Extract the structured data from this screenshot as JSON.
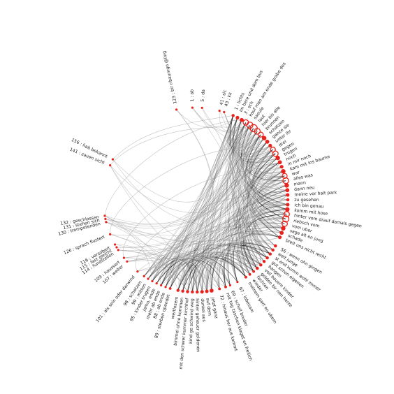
{
  "diagram": {
    "type": "radial-edge-bundle",
    "colors": {
      "background": "#ffffff",
      "edge": "#111111",
      "edge_faint": "#9a9a9a",
      "node": "#e8221c",
      "label": "#222222"
    },
    "nodes": [
      {
        "id": "n0",
        "label": "1 : ab",
        "angle": -2,
        "size": 1.0
      },
      {
        "id": "n1",
        "label": "5 : da",
        "angle": 4,
        "size": 1.0
      },
      {
        "id": "n2",
        "label": "123 : bir ribaumgo @ling",
        "angle": -12,
        "size": 1.0
      },
      {
        "id": "n3",
        "label": "41 : sic",
        "angle": 15,
        "size": 1.0
      },
      {
        "id": "n4",
        "label": "43 : kk",
        "angle": 18,
        "size": 1.0
      },
      {
        "id": "n5",
        "label": "1 : lichts",
        "angle": 24,
        "size": 1.4
      },
      {
        "id": "n6",
        "label": "im bere und dem bus",
        "angle": 27,
        "size": 1.6
      },
      {
        "id": "n7",
        "label": "3 : sch",
        "angle": 30,
        "size": 1.8
      },
      {
        "id": "n8",
        "label": "kauf man am ende grabe des",
        "angle": 33,
        "size": 2.4
      },
      {
        "id": "n9",
        "label": "saeule",
        "angle": 36,
        "size": 2.8
      },
      {
        "id": "n10",
        "label": "laut",
        "angle": 39,
        "size": 3.2
      },
      {
        "id": "n11",
        "label": "hier bis alle",
        "angle": 42,
        "size": 2.6
      },
      {
        "id": "n12",
        "label": "brunnen",
        "angle": 45,
        "size": 2.2
      },
      {
        "id": "n13",
        "label": "schatzen",
        "angle": 48,
        "size": 2.0
      },
      {
        "id": "n14",
        "label": "ganze sie",
        "angle": 51,
        "size": 1.8
      },
      {
        "id": "n15",
        "label": "unter ihr",
        "angle": 54,
        "size": 1.6
      },
      {
        "id": "n16",
        "label": "drei",
        "angle": 57,
        "size": 2.2
      },
      {
        "id": "n17",
        "label": "gegen",
        "angle": 60,
        "size": 2.4
      },
      {
        "id": "n18",
        "label": "trugen",
        "angle": 63,
        "size": 2.0
      },
      {
        "id": "n19",
        "label": "noch",
        "angle": 66,
        "size": 1.8
      },
      {
        "id": "n20",
        "label": "in mir noch",
        "angle": 69,
        "size": 1.6
      },
      {
        "id": "n21",
        "label": "kam mit ins baume",
        "angle": 72,
        "size": 2.0
      },
      {
        "id": "n22",
        "label": "war",
        "angle": 75,
        "size": 2.2
      },
      {
        "id": "n23",
        "label": "alles was",
        "angle": 78,
        "size": 2.6
      },
      {
        "id": "n24",
        "label": "mann",
        "angle": 81,
        "size": 2.0
      },
      {
        "id": "n25",
        "label": "dann neu",
        "angle": 84,
        "size": 1.8
      },
      {
        "id": "n26",
        "label": "meine vor halt park",
        "angle": 87,
        "size": 1.6
      },
      {
        "id": "n27",
        "label": "zu gesehen",
        "angle": 90,
        "size": 1.4
      },
      {
        "id": "n28",
        "label": "ich bin genau",
        "angle": 93,
        "size": 1.6
      },
      {
        "id": "n29",
        "label": "komm mit hose",
        "angle": 96,
        "size": 2.0
      },
      {
        "id": "n30",
        "label": "hinter vom drauf damals gegen",
        "angle": 99,
        "size": 2.4
      },
      {
        "id": "n31",
        "label": "riebsch vom",
        "angle": 102,
        "size": 2.8
      },
      {
        "id": "n32",
        "label": "vom uber",
        "angle": 105,
        "size": 2.4
      },
      {
        "id": "n33",
        "label": "sage alt en jung",
        "angle": 108,
        "size": 2.0
      },
      {
        "id": "n34",
        "label": "schade",
        "angle": 111,
        "size": 1.8
      },
      {
        "id": "n35",
        "label": "breit uns nicht recht",
        "angle": 114,
        "size": 1.6
      },
      {
        "id": "n36",
        "label": "56 : wenn ohn gingen",
        "angle": 120,
        "size": 1.4
      },
      {
        "id": "n37",
        "label": "weit junge",
        "angle": 123,
        "size": 1.4
      },
      {
        "id": "n38",
        "label": "st and kumm wohl immer",
        "angle": 126,
        "size": 1.4
      },
      {
        "id": "n39",
        "label": "gut schon eigenen",
        "angle": 129,
        "size": 1.4
      },
      {
        "id": "n40",
        "label": "bangen",
        "angle": 132,
        "size": 1.4
      },
      {
        "id": "n41",
        "label": "voll bauern kinder",
        "angle": 135,
        "size": 1.4
      },
      {
        "id": "n42",
        "label": "golden bir nen herze",
        "angle": 138,
        "size": 1.4
      },
      {
        "id": "n43",
        "label": "fachten",
        "angle": 141,
        "size": 1.2
      },
      {
        "id": "n44",
        "label": "wieder",
        "angle": 144,
        "size": 1.2
      },
      {
        "id": "n45",
        "label": "meinem gart en ubern",
        "angle": 147,
        "size": 1.2
      },
      {
        "id": "n46",
        "label": "67 : lobesam",
        "angle": 153,
        "size": 1.0
      },
      {
        "id": "n47",
        "label": "69 : scholl bruder",
        "angle": 158,
        "size": 1.0
      },
      {
        "id": "n48",
        "label": "mit tag taschen klaget en freilich",
        "angle": 161,
        "size": 1.2
      },
      {
        "id": "n49",
        "label": "72 : hinaus her aus kommt",
        "angle": 165,
        "size": 1.2
      },
      {
        "id": "n50",
        "label": "jetzt ganz",
        "angle": 170,
        "size": 1.8
      },
      {
        "id": "n51",
        "label": "auf dem",
        "angle": 173,
        "size": 1.6
      },
      {
        "id": "n52",
        "label": "dunkel aus",
        "angle": 176,
        "size": 1.6
      },
      {
        "id": "n53",
        "label": "hinter geheuer goldenen",
        "angle": 179,
        "size": 1.4
      },
      {
        "id": "n54",
        "label": "kind ge schwind weg",
        "angle": 182,
        "size": 1.4
      },
      {
        "id": "n55",
        "label": "mit den schwer kummer kirchhof",
        "angle": 185,
        "size": 1.4
      },
      {
        "id": "n56",
        "label": "bimmel ohne kommen",
        "angle": 188,
        "size": 1.4
      },
      {
        "id": "n57",
        "label": "wertlosem",
        "angle": 191,
        "size": 1.4
      },
      {
        "id": "n58",
        "label": "89 : sterben opendet",
        "angle": 196,
        "size": 1.2
      },
      {
        "id": "n59",
        "label": "88 : ab ende",
        "angle": 199,
        "size": 1.0
      },
      {
        "id": "n60",
        "label": "mehr ab ende",
        "angle": 202,
        "size": 1.0
      },
      {
        "id": "n61",
        "label": "jamo, ende",
        "angle": 205,
        "size": 1.0
      },
      {
        "id": "n62",
        "label": "95 : kinder trugen",
        "angle": 208,
        "size": 1.0
      },
      {
        "id": "n63",
        "label": "99 : mitten",
        "angle": 211,
        "size": 1.0
      },
      {
        "id": "n64",
        "label": "98 : schatzen",
        "angle": 214,
        "size": 1.0
      },
      {
        "id": "n65",
        "label": "101 : als sein oder darwind",
        "angle": 219,
        "size": 1.0
      },
      {
        "id": "n66",
        "label": "107 : weiter",
        "angle": 228,
        "size": 1.0
      },
      {
        "id": "n67",
        "label": "109 : haussert",
        "angle": 231,
        "size": 1.0
      },
      {
        "id": "n68",
        "label": "114 : fundstellen",
        "angle": 237,
        "size": 1.0
      },
      {
        "id": "n69",
        "label": "115 : fast gleicht",
        "angle": 239,
        "size": 1.0
      },
      {
        "id": "n70",
        "label": "116 : versobert",
        "angle": 241,
        "size": 1.0
      },
      {
        "id": "n71",
        "label": "126 : sprach flustert",
        "angle": 248,
        "size": 1.0
      },
      {
        "id": "n72",
        "label": "130 : trompetenden",
        "angle": 256,
        "size": 1.0
      },
      {
        "id": "n73",
        "label": "131 : stehen sich",
        "angle": 258,
        "size": 1.0
      },
      {
        "id": "n74",
        "label": "132 : geschlossen",
        "angle": 260,
        "size": 1.0
      },
      {
        "id": "n75",
        "label": "141 : zauen sicht",
        "angle": 292,
        "size": 1.0
      },
      {
        "id": "n76",
        "label": "156 : hab bekannt",
        "angle": 296,
        "size": 1.0
      }
    ]
  }
}
